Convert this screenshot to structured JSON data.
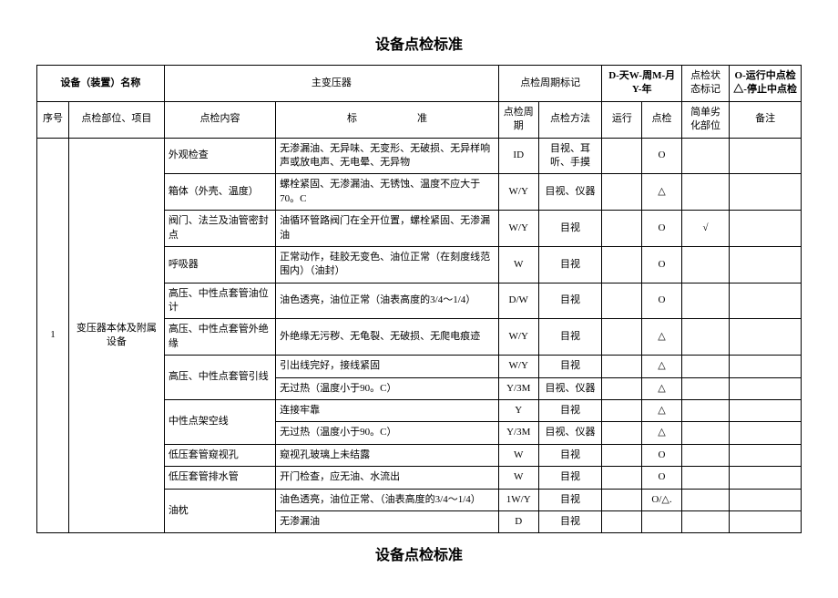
{
  "title": "设备点检标准",
  "header": {
    "device_name_label": "设备（装置）名称",
    "device_name_value": "主变压器",
    "cycle_label": "点检周期标记",
    "cycle_value": "D-天W-周M-月Y-年",
    "status_label": "点检状态标记",
    "status_value": "O-运行中点检\n△-停止中点检"
  },
  "columns": {
    "seq": "序号",
    "part": "点检部位、项目",
    "content": "点检内容",
    "standard": "标　　　　　　准",
    "cycle": "点检周期",
    "method": "点检方法",
    "run": "运行",
    "check": "点检",
    "simple": "简单劣化部位",
    "remark": "备注"
  },
  "body": {
    "seq": "1",
    "part": "变压器本体及附属设备",
    "rows": [
      {
        "content": "外观检查",
        "standard": "无渗漏油、无异味、无变形、无破损、无异样响声或放电声、无电晕、无异物",
        "cycle": "ID",
        "method": "目视、耳听、手摸",
        "run": "",
        "check": "O",
        "simple": "",
        "remark": "",
        "content_rowspan": 1
      },
      {
        "content": "箱体（外壳、温度）",
        "standard": "螺栓紧固、无渗漏油、无锈蚀、温度不应大于70。C",
        "cycle": "W/Y",
        "method": "目视、仪器",
        "run": "",
        "check": "△",
        "simple": "",
        "remark": "",
        "content_rowspan": 1
      },
      {
        "content": "阀门、法兰及油管密封点",
        "standard": "油循环管路阀门在全开位置，螺栓紧固、无渗漏油",
        "cycle": "W/Y",
        "method": "目视",
        "run": "",
        "check": "O",
        "simple": "√",
        "remark": "",
        "content_rowspan": 1
      },
      {
        "content": "呼吸器",
        "standard": "正常动作，硅胶无变色、油位正常（在刻度线范围内）（油封）",
        "cycle": "W",
        "method": "目视",
        "run": "",
        "check": "O",
        "simple": "",
        "remark": "",
        "content_rowspan": 1
      },
      {
        "content": "高压、中性点套管油位计",
        "standard": "油色透亮，油位正常（油表高度的3/4～1/4）",
        "cycle": "D/W",
        "method": "目视",
        "run": "",
        "check": "O",
        "simple": "",
        "remark": "",
        "content_rowspan": 1
      },
      {
        "content": "高压、中性点套管外绝缘",
        "standard": "外绝缘无污秽、无龟裂、无破损、无爬电痕迹",
        "cycle": "W/Y",
        "method": "目视",
        "run": "",
        "check": "△",
        "simple": "",
        "remark": "",
        "content_rowspan": 1
      },
      {
        "content": "高压、中性点套管引线",
        "standard": "引出线完好，接线紧固",
        "cycle": "W/Y",
        "method": "目视",
        "run": "",
        "check": "△",
        "simple": "",
        "remark": "",
        "content_rowspan": 2
      },
      {
        "content": "",
        "standard": "无过热（温度小于90。C）",
        "cycle": "Y/3M",
        "method": "目视、仪器",
        "run": "",
        "check": "△",
        "simple": "",
        "remark": "",
        "content_rowspan": 0
      },
      {
        "content": "中性点架空线",
        "standard": "连接牢靠",
        "cycle": "Y",
        "method": "目视",
        "run": "",
        "check": "△",
        "simple": "",
        "remark": "",
        "content_rowspan": 2
      },
      {
        "content": "",
        "standard": "无过热（温度小于90。C）",
        "cycle": "Y/3M",
        "method": "目视、仪器",
        "run": "",
        "check": "△",
        "simple": "",
        "remark": "",
        "content_rowspan": 0
      },
      {
        "content": "低压套管窥视孔",
        "standard": "窥视孔玻璃上未结露",
        "cycle": "W",
        "method": "目视",
        "run": "",
        "check": "O",
        "simple": "",
        "remark": "",
        "content_rowspan": 1
      },
      {
        "content": "低压套管排水管",
        "standard": "开门检查，应无油、水流出",
        "cycle": "W",
        "method": "目视",
        "run": "",
        "check": "O",
        "simple": "",
        "remark": "",
        "content_rowspan": 1
      },
      {
        "content": "油枕",
        "standard": "油色透亮，油位正常、（油表高度的3/4～1/4）",
        "cycle": "1W/Y",
        "method": "目视",
        "run": "",
        "check": "O/△.",
        "simple": "",
        "remark": "",
        "content_rowspan": 2
      },
      {
        "content": "",
        "standard": "无渗漏油",
        "cycle": "D",
        "method": "目视",
        "run": "",
        "check": "",
        "simple": "",
        "remark": "",
        "content_rowspan": 0
      }
    ]
  },
  "footer_title": "设备点检标准"
}
